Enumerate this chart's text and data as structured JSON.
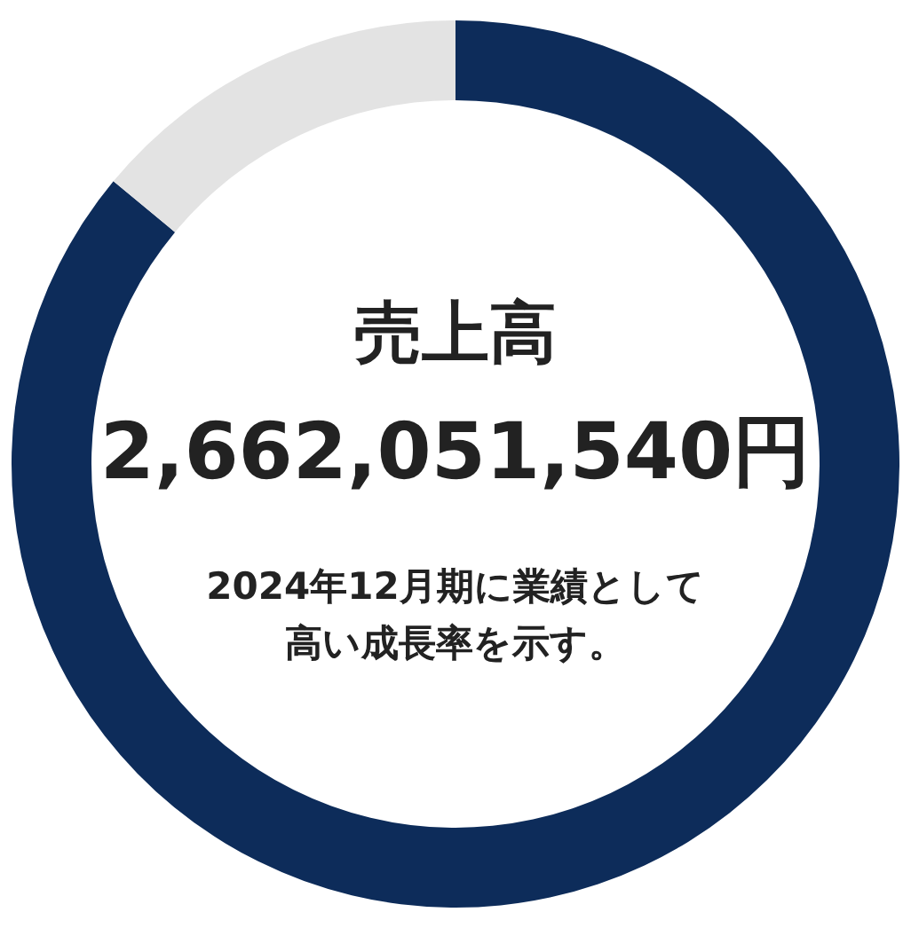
{
  "chart_data": {
    "type": "donut",
    "categories": [
      null,
      null
    ],
    "values": [
      86,
      14
    ],
    "colors": [
      "#0d2c5a",
      "#e3e3e3"
    ],
    "legend": false,
    "title": "売上高",
    "subtitle": "2,662,051,540円",
    "annotations": [
      "2024年12月期に業績として",
      "高い成長率を示す。"
    ]
  }
}
